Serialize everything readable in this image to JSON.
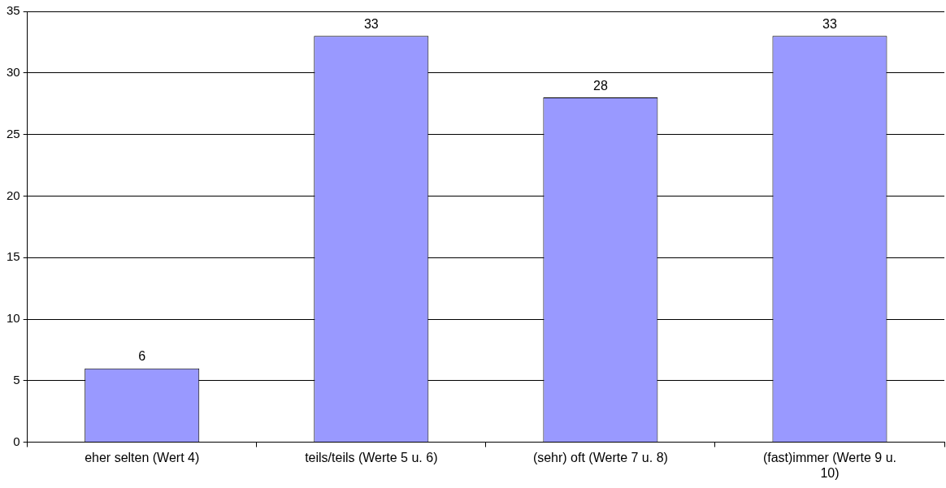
{
  "chart_data": {
    "type": "bar",
    "categories": [
      "eher selten (Wert 4)",
      "teils/teils (Werte 5 u. 6)",
      "(sehr) oft (Werte 7 u. 8)",
      "(fast)immer (Werte 9 u. 10)"
    ],
    "values": [
      6,
      33,
      28,
      33
    ],
    "color": "#9999ff",
    "ylim": [
      0,
      35
    ],
    "yticks": [
      0,
      5,
      10,
      15,
      20,
      25,
      30,
      35
    ],
    "grid": "y",
    "data_labels": true,
    "legend": false
  }
}
